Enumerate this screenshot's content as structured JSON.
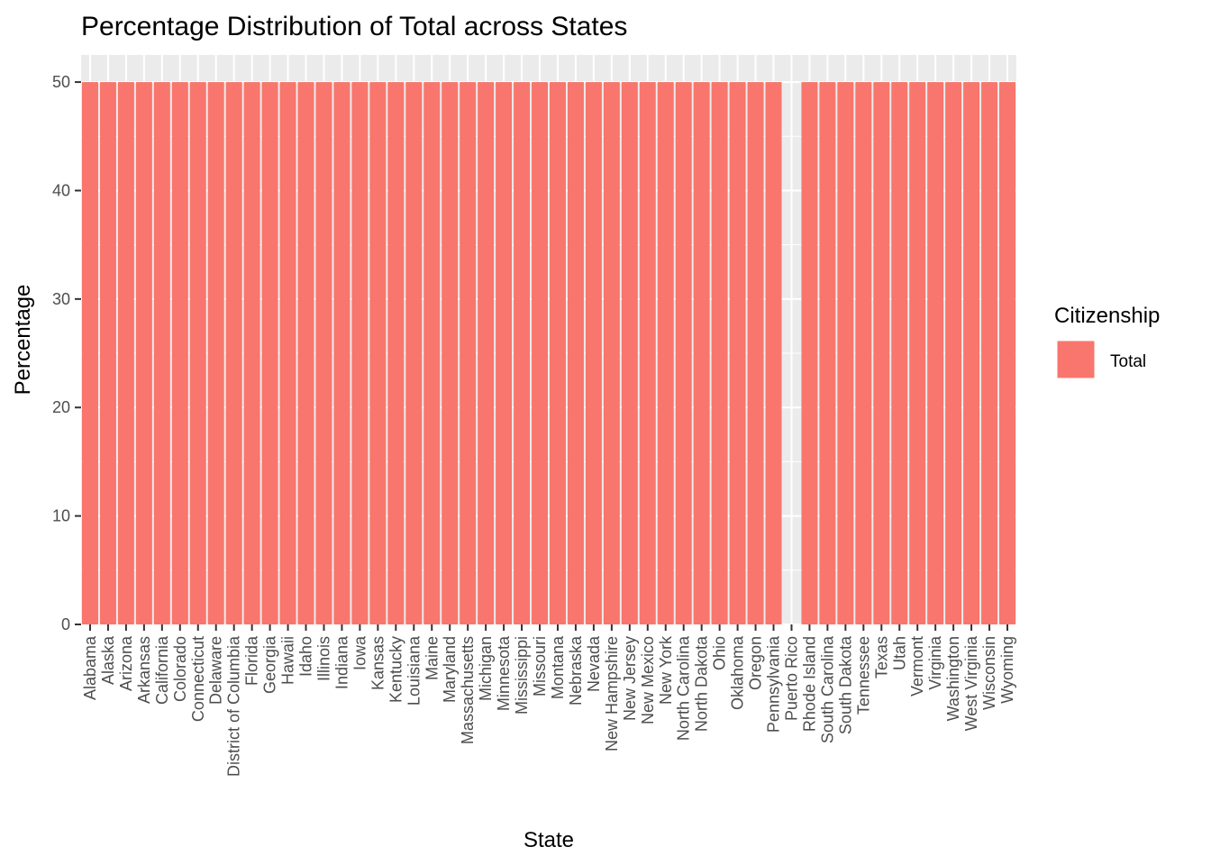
{
  "chart_data": {
    "type": "bar",
    "title": "Percentage Distribution of Total across States",
    "xlabel": "State",
    "ylabel": "Percentage",
    "ylim": [
      0,
      52.5
    ],
    "yticks": [
      0,
      10,
      20,
      30,
      40,
      50
    ],
    "grid": true,
    "categories": [
      "Alabama",
      "Alaska",
      "Arizona",
      "Arkansas",
      "California",
      "Colorado",
      "Connecticut",
      "Delaware",
      "District of Columbia",
      "Florida",
      "Georgia",
      "Hawaii",
      "Idaho",
      "Illinois",
      "Indiana",
      "Iowa",
      "Kansas",
      "Kentucky",
      "Louisiana",
      "Maine",
      "Maryland",
      "Massachusetts",
      "Michigan",
      "Minnesota",
      "Mississippi",
      "Missouri",
      "Montana",
      "Nebraska",
      "Nevada",
      "New Hampshire",
      "New Jersey",
      "New Mexico",
      "New York",
      "North Carolina",
      "North Dakota",
      "Ohio",
      "Oklahoma",
      "Oregon",
      "Pennsylvania",
      "Puerto Rico",
      "Rhode Island",
      "South Carolina",
      "South Dakota",
      "Tennessee",
      "Texas",
      "Utah",
      "Vermont",
      "Virginia",
      "Washington",
      "West Virginia",
      "Wisconsin",
      "Wyoming"
    ],
    "series": [
      {
        "name": "Total",
        "color": "#F8766D",
        "values": [
          50,
          50,
          50,
          50,
          50,
          50,
          50,
          50,
          50,
          50,
          50,
          50,
          50,
          50,
          50,
          50,
          50,
          50,
          50,
          50,
          50,
          50,
          50,
          50,
          50,
          50,
          50,
          50,
          50,
          50,
          50,
          50,
          50,
          50,
          50,
          50,
          50,
          50,
          50,
          null,
          50,
          50,
          50,
          50,
          50,
          50,
          50,
          50,
          50,
          50,
          50,
          50
        ]
      }
    ],
    "legend": {
      "title": "Citizenship",
      "position": "right"
    },
    "panel_color": "#EBEBEB",
    "gridline_color": "#FFFFFF"
  }
}
